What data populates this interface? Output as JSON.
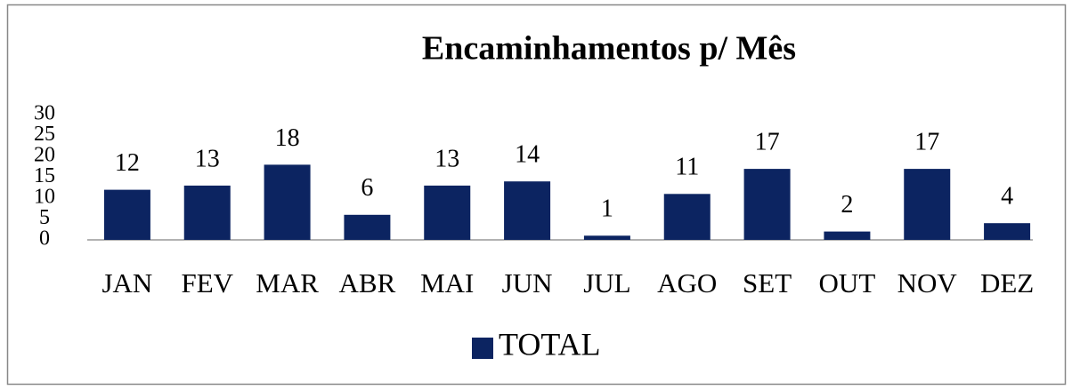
{
  "chart_data": {
    "type": "bar",
    "title": "Encaminhamentos p/ Mês",
    "categories": [
      "JAN",
      "FEV",
      "MAR",
      "ABR",
      "MAI",
      "JUN",
      "JUL",
      "AGO",
      "SET",
      "OUT",
      "NOV",
      "DEZ"
    ],
    "series": [
      {
        "name": "TOTAL",
        "color": "#0c2461",
        "values": [
          12,
          13,
          18,
          6,
          13,
          14,
          1,
          11,
          17,
          2,
          17,
          4
        ]
      }
    ],
    "ylim": [
      0,
      30
    ],
    "yticks": [
      0,
      5,
      10,
      15,
      20,
      25,
      30
    ],
    "grid": false,
    "legend": "bottom"
  }
}
